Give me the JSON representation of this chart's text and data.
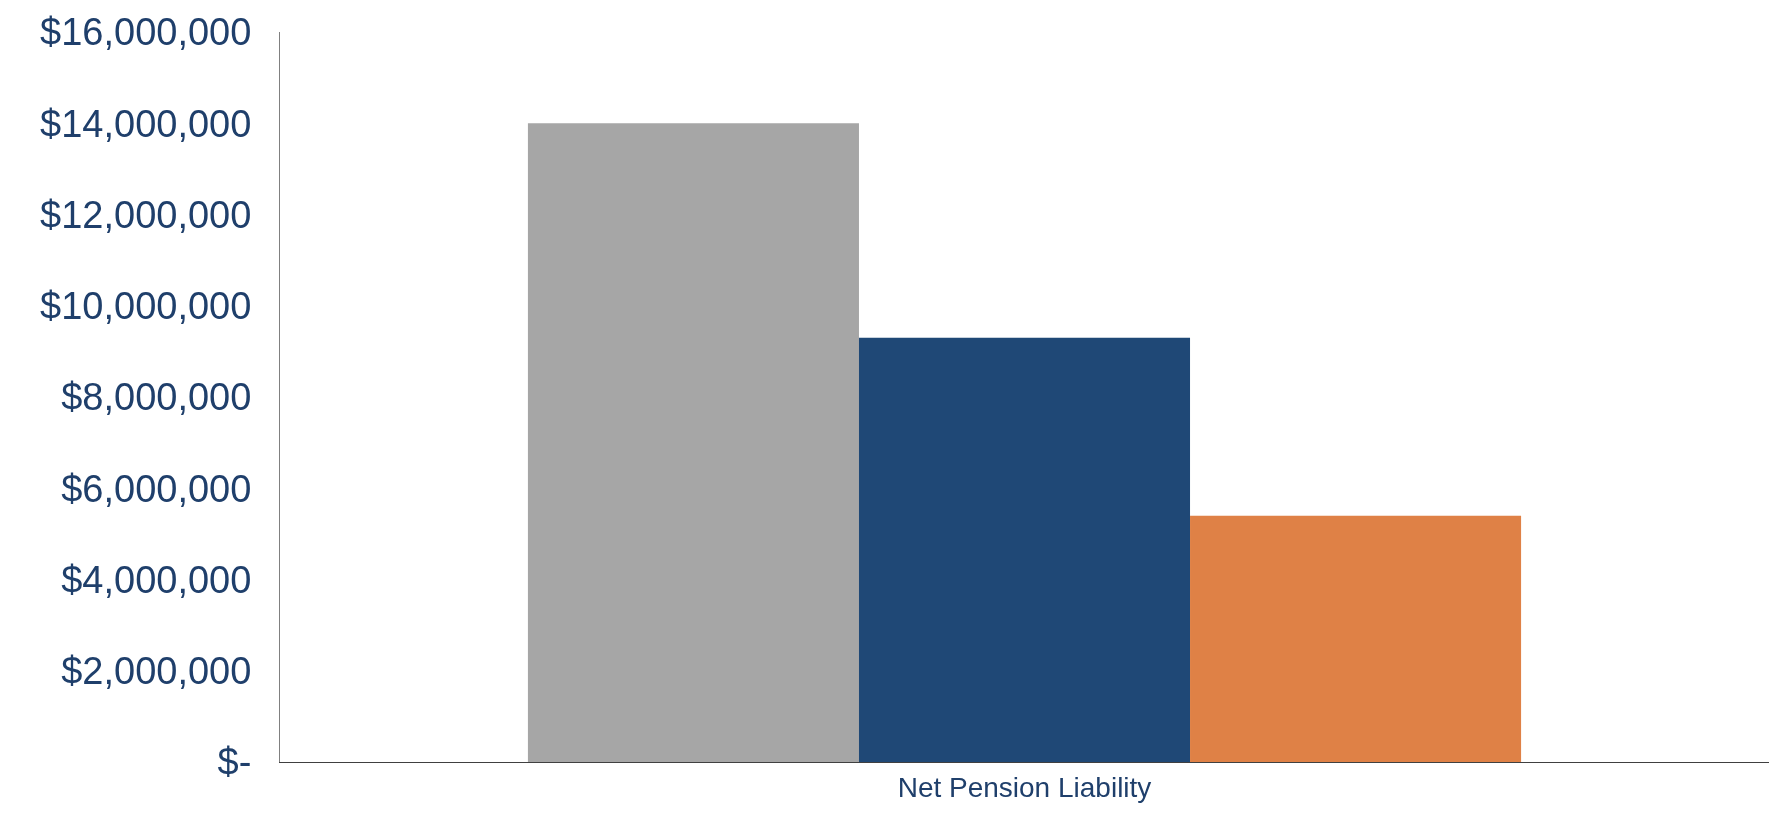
{
  "chart_data": {
    "type": "bar",
    "categories": [
      "Net Pension Liability"
    ],
    "series": [
      {
        "color": "#a6a6a6",
        "values": [
          14000000
        ]
      },
      {
        "color": "#1f4876",
        "values": [
          9300000
        ]
      },
      {
        "color": "#df8146",
        "values": [
          5400000
        ]
      }
    ],
    "ylim": [
      0,
      16000000
    ],
    "yticks": [
      {
        "value": 0,
        "label": "$-"
      },
      {
        "value": 2000000,
        "label": "$2,000,000"
      },
      {
        "value": 4000000,
        "label": "$4,000,000"
      },
      {
        "value": 6000000,
        "label": "$6,000,000"
      },
      {
        "value": 8000000,
        "label": "$8,000,000"
      },
      {
        "value": 10000000,
        "label": "$10,000,000"
      },
      {
        "value": 12000000,
        "label": "$12,000,000"
      },
      {
        "value": 14000000,
        "label": "$14,000,000"
      },
      {
        "value": 16000000,
        "label": "$16,000,000"
      }
    ],
    "grid": false
  }
}
